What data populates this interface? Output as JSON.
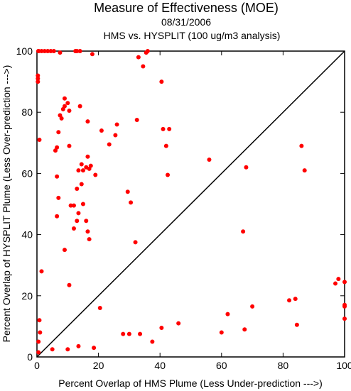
{
  "chart_data": {
    "type": "scatter",
    "title": "Measure of Effectiveness (MOE)",
    "subtitle_date": "08/31/2006",
    "subtitle_run": "HMS vs. HYSPLIT  (100 ug/m3 analysis)",
    "xlabel": "Percent Overlap of HMS Plume (Less Under-prediction --->)",
    "ylabel": "Percent Overlap of HYSPLIT Plume (Less Over-prediction --->)",
    "xlim": [
      0,
      100
    ],
    "ylim": [
      0,
      100
    ],
    "xticks": [
      0,
      20,
      40,
      60,
      80,
      100
    ],
    "yticks": [
      0,
      20,
      40,
      60,
      80,
      100
    ],
    "diagonal": true,
    "grid": false,
    "point_color": "#ff0000",
    "series": [
      {
        "x": [
          0.5,
          0.5,
          0.5,
          0.5,
          1.5,
          2.5,
          3.5,
          4.5,
          5.5,
          7.5,
          12.5,
          13,
          14,
          18,
          33,
          34.5,
          35.5,
          36,
          0.3,
          0.3,
          0.3,
          9,
          10,
          10.5,
          7.5,
          8,
          9,
          8.5,
          14,
          16.5,
          7,
          21,
          23.5,
          25.5,
          26,
          41,
          43,
          42,
          6.5,
          6,
          10.5,
          0.8,
          16.5,
          17,
          17.5,
          14.5,
          13.5,
          15,
          16,
          19,
          6.5,
          14.5,
          13,
          7,
          11,
          12,
          13.5,
          15,
          16,
          13,
          12,
          16.5,
          17,
          9,
          6.5,
          29.5,
          30.5,
          32,
          42.5,
          56,
          68,
          67,
          86,
          87,
          40.5,
          32.5,
          1.5,
          20.5,
          10.5,
          0.8,
          1,
          0.5,
          0.5,
          5,
          10,
          13.5,
          18.5,
          28,
          30,
          33.5,
          37.5,
          40.5,
          46,
          60,
          62,
          67.5,
          70,
          82,
          84,
          84.5,
          97,
          98,
          100,
          100,
          100,
          100
        ],
        "y": [
          100,
          100,
          100,
          100,
          100,
          100,
          100,
          100,
          100,
          99.5,
          100,
          100,
          100,
          99,
          98,
          95,
          99.5,
          100,
          92,
          91,
          90,
          84.5,
          83,
          80.5,
          79,
          78,
          82,
          81,
          82,
          77,
          73.5,
          74,
          69.5,
          72.5,
          76,
          74.5,
          74.5,
          69,
          68.5,
          67.5,
          69,
          71,
          65.5,
          61.5,
          62.5,
          63,
          61,
          61,
          62,
          59.5,
          59,
          56.5,
          55,
          52,
          49.5,
          49.5,
          47,
          50,
          44.5,
          44.5,
          42,
          41,
          38.5,
          35,
          46,
          54,
          50.5,
          37.5,
          59.5,
          64.5,
          62,
          41,
          69,
          61,
          90,
          77.5,
          28,
          16,
          23.5,
          12,
          8,
          5,
          1.5,
          2.5,
          2.5,
          3.5,
          3,
          7.5,
          7.5,
          7.5,
          5,
          9.5,
          11,
          8,
          14,
          9,
          16.5,
          18.5,
          19,
          10.5,
          24,
          25.5,
          24.5,
          17,
          16.5,
          12.5
        ]
      }
    ]
  }
}
